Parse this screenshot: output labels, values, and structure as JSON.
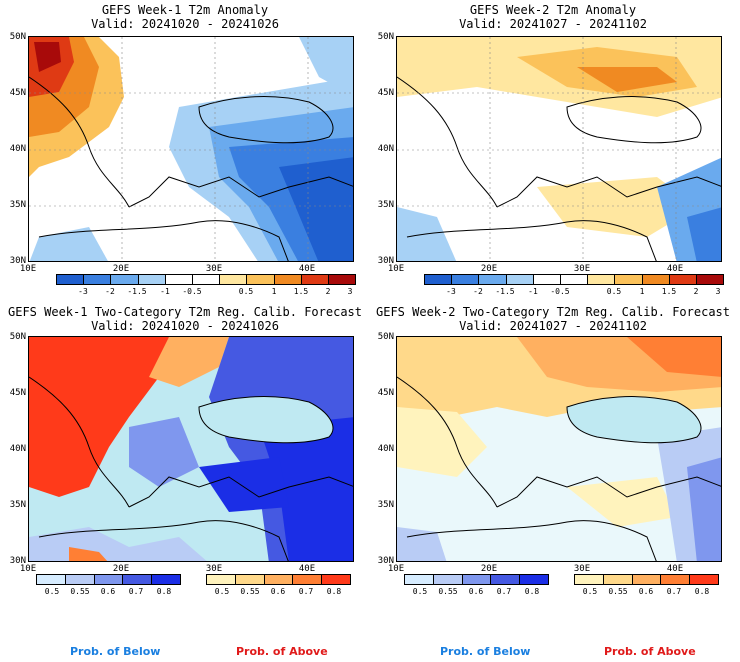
{
  "colors": {
    "anomaly_scale": [
      "#1f5fcf",
      "#3a7fe0",
      "#6aaaee",
      "#a7d1f5",
      "#ffffff",
      "#ffffff",
      "#ffe7a0",
      "#fbc25a",
      "#f08a22",
      "#df3a14",
      "#a80a0a"
    ],
    "prob_below": [
      "#d6ecff",
      "#b9ccf5",
      "#7f97ee",
      "#4559e2",
      "#1b2ee6"
    ],
    "prob_above": [
      "#fff3bd",
      "#ffd98a",
      "#ffb060",
      "#ff7f34",
      "#ff3a1a"
    ],
    "land": "#bfe9f2",
    "land_light": "#eaf8fb",
    "sea": "#ffffff",
    "prob_below_label": "#1a7fe0",
    "prob_above_label": "#e01a1a"
  },
  "panels": {
    "p1": {
      "title": "GEFS Week-1 T2m Anomaly",
      "valid": "Valid: 20241020 - 20241026"
    },
    "p2": {
      "title": "GEFS Week-2 T2m Anomaly",
      "valid": "Valid: 20241027 - 20241102"
    },
    "p3": {
      "title": "GEFS Week-1 Two-Category T2m Reg. Calib. Forecast",
      "valid": "Valid: 20241020 - 20241026"
    },
    "p4": {
      "title": "GEFS Week-2 Two-Category T2m Reg. Calib. Forecast",
      "valid": "Valid: 20241027 - 20241102"
    }
  },
  "axes": {
    "lat_labels": [
      "50N",
      "45N",
      "40N",
      "35N",
      "30N"
    ],
    "lon_labels": [
      "10E",
      "20E",
      "30E",
      "40E"
    ],
    "lon_range": [
      10,
      45
    ],
    "lat_range": [
      30,
      50
    ]
  },
  "colorbars": {
    "anomaly_ticks": [
      "-3",
      "-2",
      "-1.5",
      "-1",
      "-0.5",
      "0.5",
      "1",
      "1.5",
      "2",
      "3"
    ],
    "prob_ticks": [
      "0.5",
      "0.55",
      "0.6",
      "0.7",
      "0.8"
    ]
  },
  "legend": {
    "below_left": "Prob. of Below",
    "above_left": "Prob. of Above",
    "below_right": "Prob. of Below",
    "above_right": "Prob. of Above"
  }
}
